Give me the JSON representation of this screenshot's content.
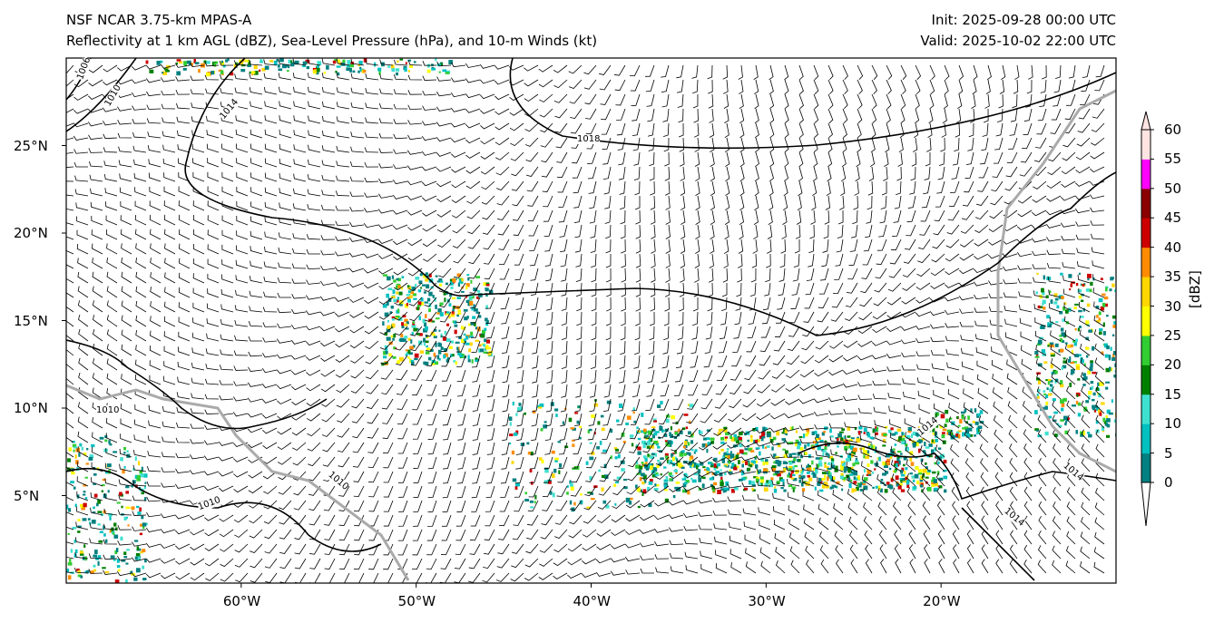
{
  "title": {
    "model": "NSF NCAR 3.75-km MPAS-A",
    "fields": "Reflectivity at 1 km AGL (dBZ), Sea-Level Pressure (hPa), and 10-m Winds (kt)",
    "init": "Init: 2025-09-28 00:00 UTC",
    "valid": "Valid: 2025-10-02 22:00 UTC"
  },
  "map": {
    "lon_range": [
      -70,
      -10
    ],
    "lat_range": [
      0,
      30
    ],
    "lon_ticks": [
      {
        "value": -60,
        "label": "60°W"
      },
      {
        "value": -50,
        "label": "50°W"
      },
      {
        "value": -40,
        "label": "40°W"
      },
      {
        "value": -30,
        "label": "30°W"
      },
      {
        "value": -20,
        "label": "20°W"
      }
    ],
    "lat_ticks": [
      {
        "value": 25,
        "label": "25°N"
      },
      {
        "value": 20,
        "label": "20°N"
      },
      {
        "value": 15,
        "label": "15°N"
      },
      {
        "value": 10,
        "label": "10°N"
      },
      {
        "value": 5,
        "label": "5°N"
      }
    ],
    "isobar_labels": [
      "1006",
      "1010",
      "1014",
      "1018",
      "1010",
      "1010",
      "1010",
      "1014",
      "1014",
      "1014"
    ]
  },
  "colorbar": {
    "label": "[dBZ]",
    "ticks": [
      "0",
      "5",
      "10",
      "15",
      "20",
      "25",
      "30",
      "35",
      "40",
      "45",
      "50",
      "55",
      "60"
    ],
    "colors": [
      "#008080",
      "#00c0c0",
      "#40e0d0",
      "#008000",
      "#32cd32",
      "#ffff00",
      "#ffd700",
      "#ff8c00",
      "#cc0000",
      "#8b0000",
      "#ff00ff",
      "#ffe4e1"
    ]
  }
}
